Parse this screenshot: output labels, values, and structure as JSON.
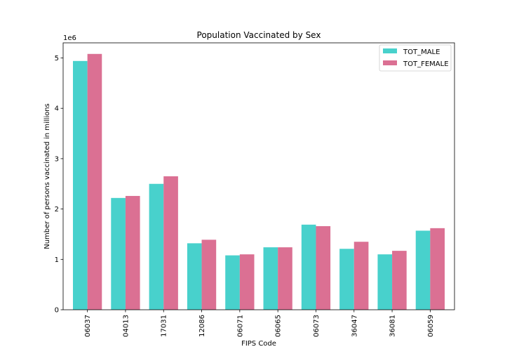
{
  "chart_data": {
    "type": "bar",
    "title": "Population Vaccinated by Sex",
    "xlabel": "FIPS Code",
    "ylabel": "Number of persons vaccinated in millions",
    "y_offset_label": "1e6",
    "categories": [
      "06037",
      "04013",
      "17031",
      "12086",
      "06071",
      "06065",
      "06073",
      "36047",
      "36081",
      "06059"
    ],
    "series": [
      {
        "name": "TOT_MALE",
        "color": "#48d1cc",
        "values": [
          4.94,
          2.22,
          2.5,
          1.32,
          1.08,
          1.24,
          1.69,
          1.21,
          1.1,
          1.57
        ]
      },
      {
        "name": "TOT_FEMALE",
        "color": "#db7093",
        "values": [
          5.08,
          2.26,
          2.65,
          1.39,
          1.1,
          1.24,
          1.66,
          1.35,
          1.17,
          1.62
        ]
      }
    ],
    "ylim": [
      0,
      5.3
    ],
    "yticks": [
      0,
      1,
      2,
      3,
      4,
      5
    ],
    "legend_position": "top-right",
    "grid": false
  }
}
